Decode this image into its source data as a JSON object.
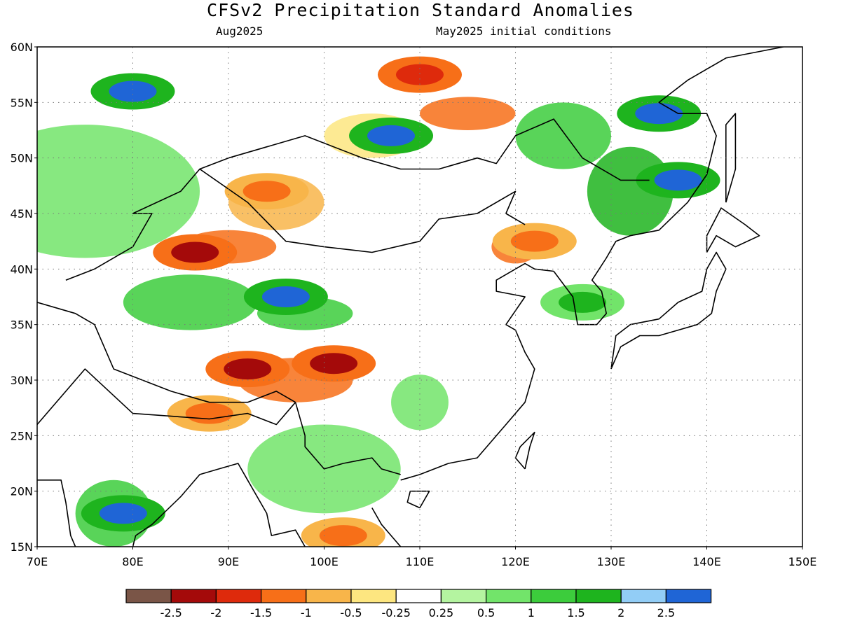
{
  "title": "CFSv2 Precipitation Standard Anomalies",
  "valid_month": "Aug2025",
  "initial_conditions": "May2025 initial conditions",
  "map": {
    "lon_range": [
      70,
      150
    ],
    "lat_range": [
      15,
      60
    ],
    "lon_ticks": [
      "70E",
      "80E",
      "90E",
      "100E",
      "110E",
      "120E",
      "130E",
      "140E",
      "150E"
    ],
    "lat_ticks": [
      "15N",
      "20N",
      "25N",
      "30N",
      "35N",
      "40N",
      "45N",
      "50N",
      "55N",
      "60N"
    ],
    "gridlines": true
  },
  "colorbar": {
    "colors": [
      "#7a5547",
      "#a40a0a",
      "#de2a0c",
      "#f76f18",
      "#f8b54a",
      "#fde680",
      "#ffffff",
      "#b4f4a0",
      "#72e46a",
      "#3ccc3c",
      "#1eb41e",
      "#92cdf6",
      "#1f65d6"
    ],
    "labels": [
      "-2.5",
      "-2",
      "-1.5",
      "-1",
      "-0.5",
      "-0.25",
      "0.25",
      "0.5",
      "1",
      "1.5",
      "2",
      "2.5"
    ]
  },
  "anomaly_regions": [
    {
      "name": "Siberia north of Kazakhstan",
      "center": [
        80,
        56
      ],
      "value": 2.5
    },
    {
      "name": "Lake Baikal",
      "center": [
        107,
        52
      ],
      "value": 2.5
    },
    {
      "name": "Northern Mongolia",
      "center": [
        110,
        57.5
      ],
      "value": -2
    },
    {
      "name": "Manchuria / Amur",
      "center": [
        135,
        54
      ],
      "value": 2.5
    },
    {
      "name": "Northeast China",
      "center": [
        137,
        48
      ],
      "value": 2.5
    },
    {
      "name": "Western Mongolia / Dzungaria",
      "center": [
        94,
        47
      ],
      "value": -1.5
    },
    {
      "name": "Tarim Basin north rim",
      "center": [
        86.5,
        41.5
      ],
      "value": -2.5
    },
    {
      "name": "Qaidam",
      "center": [
        96,
        37.5
      ],
      "value": 2.5
    },
    {
      "name": "Tibetan Plateau central",
      "center": [
        92,
        31
      ],
      "value": -2.5
    },
    {
      "name": "Sichuan / Hengduan",
      "center": [
        101,
        31.5
      ],
      "value": -2.5
    },
    {
      "name": "Inner Mongolia east",
      "center": [
        122,
        42.5
      ],
      "value": -1.5
    },
    {
      "name": "Korea",
      "center": [
        127,
        37
      ],
      "value": 1.5
    },
    {
      "name": "India central",
      "center": [
        79,
        18
      ],
      "value": 2.5
    },
    {
      "name": "Himalaya south",
      "center": [
        88,
        27
      ],
      "value": -1.5
    },
    {
      "name": "Indochina",
      "center": [
        102,
        16
      ],
      "value": -1.5
    }
  ]
}
